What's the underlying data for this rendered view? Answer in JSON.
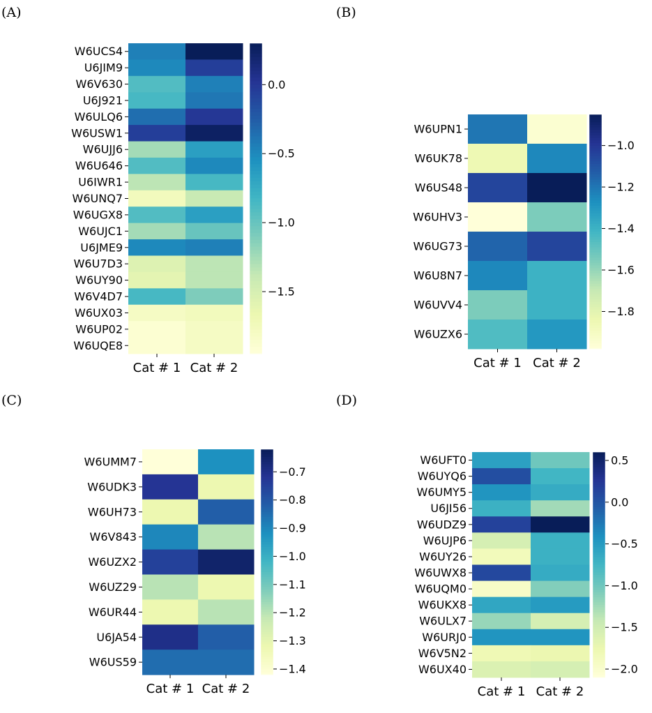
{
  "figure": {
    "panel_labels": [
      "(A)",
      "(B)",
      "(C)",
      "(D)"
    ]
  },
  "colormap": {
    "name": "YlGnBu",
    "stops": [
      "#ffffd9",
      "#edf8b1",
      "#c7e9b4",
      "#7fcdbb",
      "#41b6c4",
      "#1d91c0",
      "#225ea8",
      "#253494",
      "#081d58"
    ]
  },
  "chart_data": [
    {
      "type": "heatmap",
      "panel": "(A)",
      "columns": [
        "Cat # 1",
        "Cat # 2"
      ],
      "rows": [
        "W6UCS4",
        "U6JIM9",
        "W6V630",
        "U6J921",
        "W6ULQ6",
        "W6USW1",
        "W6UJJ6",
        "W6U646",
        "U6IWR1",
        "W6UNQ7",
        "W6UGX8",
        "W6UJC1",
        "U6JME9",
        "W6U7D3",
        "W6UY90",
        "W6V4D7",
        "W6UX03",
        "W6UP02",
        "W6UQE8"
      ],
      "values": [
        [
          -0.45,
          0.3
        ],
        [
          -0.5,
          -0.05
        ],
        [
          -0.9,
          -0.45
        ],
        [
          -0.85,
          -0.4
        ],
        [
          -0.35,
          0.0
        ],
        [
          -0.05,
          0.25
        ],
        [
          -1.25,
          -0.65
        ],
        [
          -0.9,
          -0.5
        ],
        [
          -1.35,
          -0.85
        ],
        [
          -1.75,
          -1.4
        ],
        [
          -0.9,
          -0.65
        ],
        [
          -1.25,
          -1.0
        ],
        [
          -0.5,
          -0.45
        ],
        [
          -1.55,
          -1.35
        ],
        [
          -1.6,
          -1.35
        ],
        [
          -0.85,
          -1.1
        ],
        [
          -1.8,
          -1.75
        ],
        [
          -1.9,
          -1.8
        ],
        [
          -1.9,
          -1.8
        ]
      ],
      "vmin": -1.95,
      "vmax": 0.3,
      "colorbar_ticks": [
        0.0,
        -0.5,
        -1.0,
        -1.5
      ],
      "colorbar_tick_labels": [
        "0.0",
        "−0.5",
        "−1.0",
        "−1.5"
      ]
    },
    {
      "type": "heatmap",
      "panel": "(B)",
      "columns": [
        "Cat # 1",
        "Cat # 2"
      ],
      "rows": [
        "W6UPN1",
        "W6UK78",
        "W6US48",
        "W6UHV3",
        "W6UG73",
        "W6U8N7",
        "W6UVV4",
        "W6UZX6"
      ],
      "values": [
        [
          -1.2,
          -1.95
        ],
        [
          -1.85,
          -1.25
        ],
        [
          -1.05,
          -0.85
        ],
        [
          -1.98,
          -1.55
        ],
        [
          -1.15,
          -1.05
        ],
        [
          -1.25,
          -1.4
        ],
        [
          -1.55,
          -1.4
        ],
        [
          -1.45,
          -1.3
        ]
      ],
      "vmin": -1.98,
      "vmax": -0.85,
      "colorbar_ticks": [
        -1.0,
        -1.2,
        -1.4,
        -1.6,
        -1.8
      ],
      "colorbar_tick_labels": [
        "−1.0",
        "−1.2",
        "−1.4",
        "−1.6",
        "−1.8"
      ]
    },
    {
      "type": "heatmap",
      "panel": "(C)",
      "columns": [
        "Cat # 1",
        "Cat # 2"
      ],
      "rows": [
        "W6UMM7",
        "W6UDK3",
        "W6UH73",
        "W6V843",
        "W6UZX2",
        "W6UZ29",
        "W6UR44",
        "U6JA54",
        "W6US59"
      ],
      "values": [
        [
          -1.42,
          -0.92
        ],
        [
          -0.72,
          -1.32
        ],
        [
          -1.32,
          -0.82
        ],
        [
          -0.9,
          -1.2
        ],
        [
          -0.75,
          -0.65
        ],
        [
          -1.2,
          -1.32
        ],
        [
          -1.32,
          -1.2
        ],
        [
          -0.7,
          -0.82
        ],
        [
          -0.85,
          -0.85
        ]
      ],
      "vmin": -1.42,
      "vmax": -0.62,
      "colorbar_ticks": [
        -0.7,
        -0.8,
        -0.9,
        -1.0,
        -1.1,
        -1.2,
        -1.3,
        -1.4
      ],
      "colorbar_tick_labels": [
        "−0.7",
        "−0.8",
        "−0.9",
        "−1.0",
        "−1.1",
        "−1.2",
        "−1.3",
        "−1.4"
      ]
    },
    {
      "type": "heatmap",
      "panel": "(D)",
      "columns": [
        "Cat # 1",
        "Cat # 2"
      ],
      "rows": [
        "W6UFT0",
        "W6UYQ6",
        "W6UMY5",
        "U6JI56",
        "W6UDZ9",
        "W6UJP6",
        "W6UY26",
        "W6UWX8",
        "W6UQM0",
        "W6UKX8",
        "W6ULX7",
        "W6URJ0",
        "W6V5N2",
        "W6UX40"
      ],
      "values": [
        [
          -0.55,
          -1.0
        ],
        [
          0.05,
          -0.75
        ],
        [
          -0.45,
          -0.65
        ],
        [
          -0.7,
          -1.25
        ],
        [
          0.15,
          0.6
        ],
        [
          -1.55,
          -0.7
        ],
        [
          -1.85,
          -0.7
        ],
        [
          0.1,
          -0.65
        ],
        [
          -1.95,
          -1.1
        ],
        [
          -0.6,
          -0.5
        ],
        [
          -1.2,
          -1.55
        ],
        [
          -0.45,
          -0.45
        ],
        [
          -1.8,
          -1.75
        ],
        [
          -1.6,
          -1.55
        ]
      ],
      "vmin": -2.1,
      "vmax": 0.6,
      "colorbar_ticks": [
        0.5,
        0.0,
        -0.5,
        -1.0,
        -1.5,
        -2.0
      ],
      "colorbar_tick_labels": [
        "0.5",
        "0.0",
        "−0.5",
        "−1.0",
        "−1.5",
        "−2.0"
      ]
    }
  ]
}
